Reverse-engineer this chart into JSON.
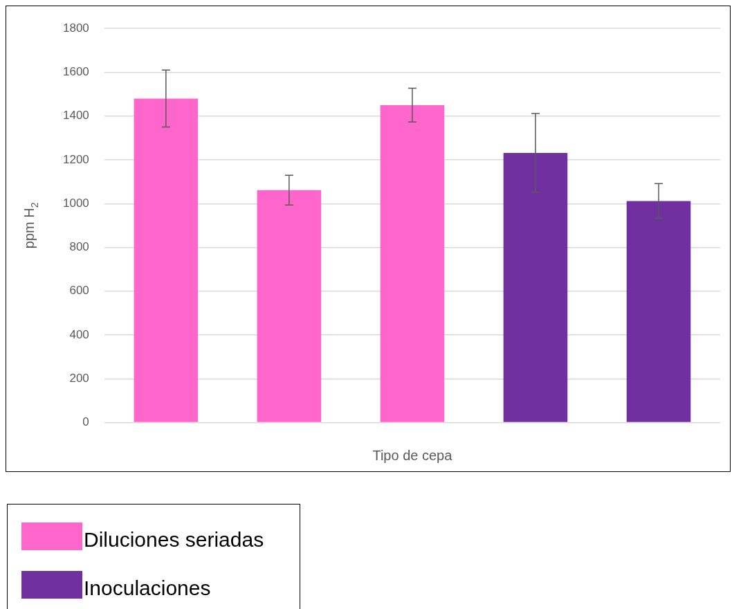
{
  "chart_data": {
    "type": "bar",
    "xlabel": "Tipo de cepa",
    "ylabel": "ppm H$_{2}$",
    "categories": [
      null,
      null,
      null,
      null,
      null
    ],
    "series": [
      {
        "name": "Diluciones seriadas",
        "color": "#ff66cc",
        "values": [
          1480,
          1062,
          1450,
          null,
          null
        ],
        "errors": [
          130,
          68,
          77,
          null,
          null
        ]
      },
      {
        "name": "Inoculaciones",
        "color": "#7030a0",
        "values": [
          null,
          null,
          null,
          1232,
          1012
        ],
        "errors": [
          null,
          null,
          null,
          180,
          80
        ]
      }
    ],
    "ylim": [
      0,
      1800
    ],
    "yticks": [
      0,
      200,
      400,
      600,
      800,
      1000,
      1200,
      1400,
      1600,
      1800
    ],
    "grid": "y",
    "legend": "bottom left"
  }
}
